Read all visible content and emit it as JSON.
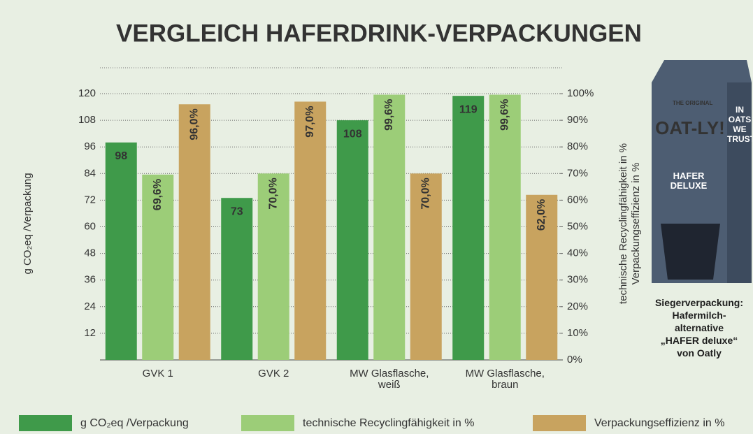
{
  "chart_data": {
    "type": "bar",
    "title": "VERGLEICH HAFERDRINK-VERPACKUNGEN",
    "ylabel": "g CO₂eq /Verpackung",
    "y2label": [
      "technische Recyclingfähigkeit in %",
      "Verpackungseffizienz in %"
    ],
    "categories": [
      "GVK 1",
      "GVK 2",
      "MW Glasflasche, weiß",
      "MW Glasflasche, braun"
    ],
    "series": [
      {
        "name": "g CO₂eq /Verpackung",
        "color": "#3f9a4a",
        "values": [
          98,
          73,
          108,
          119
        ]
      },
      {
        "name": "technische Recyclingfähigkeit in %",
        "color": "#9ccd78",
        "axis": "y2",
        "values": [
          69.6,
          70.0,
          99.6,
          99.6
        ],
        "value_labels": [
          "69,6%",
          "70,0%",
          "99,6%",
          "99,6%"
        ]
      },
      {
        "name": "Verpackungseffizienz in %",
        "color": "#c8a35f",
        "axis": "y2",
        "values": [
          96.0,
          97.0,
          70.0,
          62.0
        ],
        "value_labels": [
          "96,0%",
          "97,0%",
          "70,0%",
          "62,0%"
        ]
      }
    ],
    "ylim": [
      0,
      120
    ],
    "yticks": [
      12,
      24,
      36,
      48,
      60,
      72,
      84,
      96,
      108,
      120
    ],
    "y2lim": [
      0,
      100
    ],
    "y2ticks": [
      {
        "value": 0,
        "label": "0%"
      },
      {
        "value": 10,
        "label": "10%"
      },
      {
        "value": 20,
        "label": "20%"
      },
      {
        "value": 30,
        "label": "30%"
      },
      {
        "value": 40,
        "label": "40%"
      },
      {
        "value": 50,
        "label": "50%"
      },
      {
        "value": 60,
        "label": "60%"
      },
      {
        "value": 70,
        "label": "70%"
      },
      {
        "value": 80,
        "label": "80%"
      },
      {
        "value": 90,
        "label": "90%"
      },
      {
        "value": 100,
        "label": "100%"
      }
    ],
    "grid": true,
    "legend": "bottom"
  },
  "carton": {
    "brand_top": "THE ORIGINAL",
    "brand": "OAT-LY!",
    "slogan": "IN OATS WE TRUST",
    "product": "HAFER DELUXE"
  },
  "caption": [
    "Siegerverpackung:",
    "Hafermilch-",
    "alternative",
    "„HAFER deluxe“",
    "von Oatly"
  ]
}
